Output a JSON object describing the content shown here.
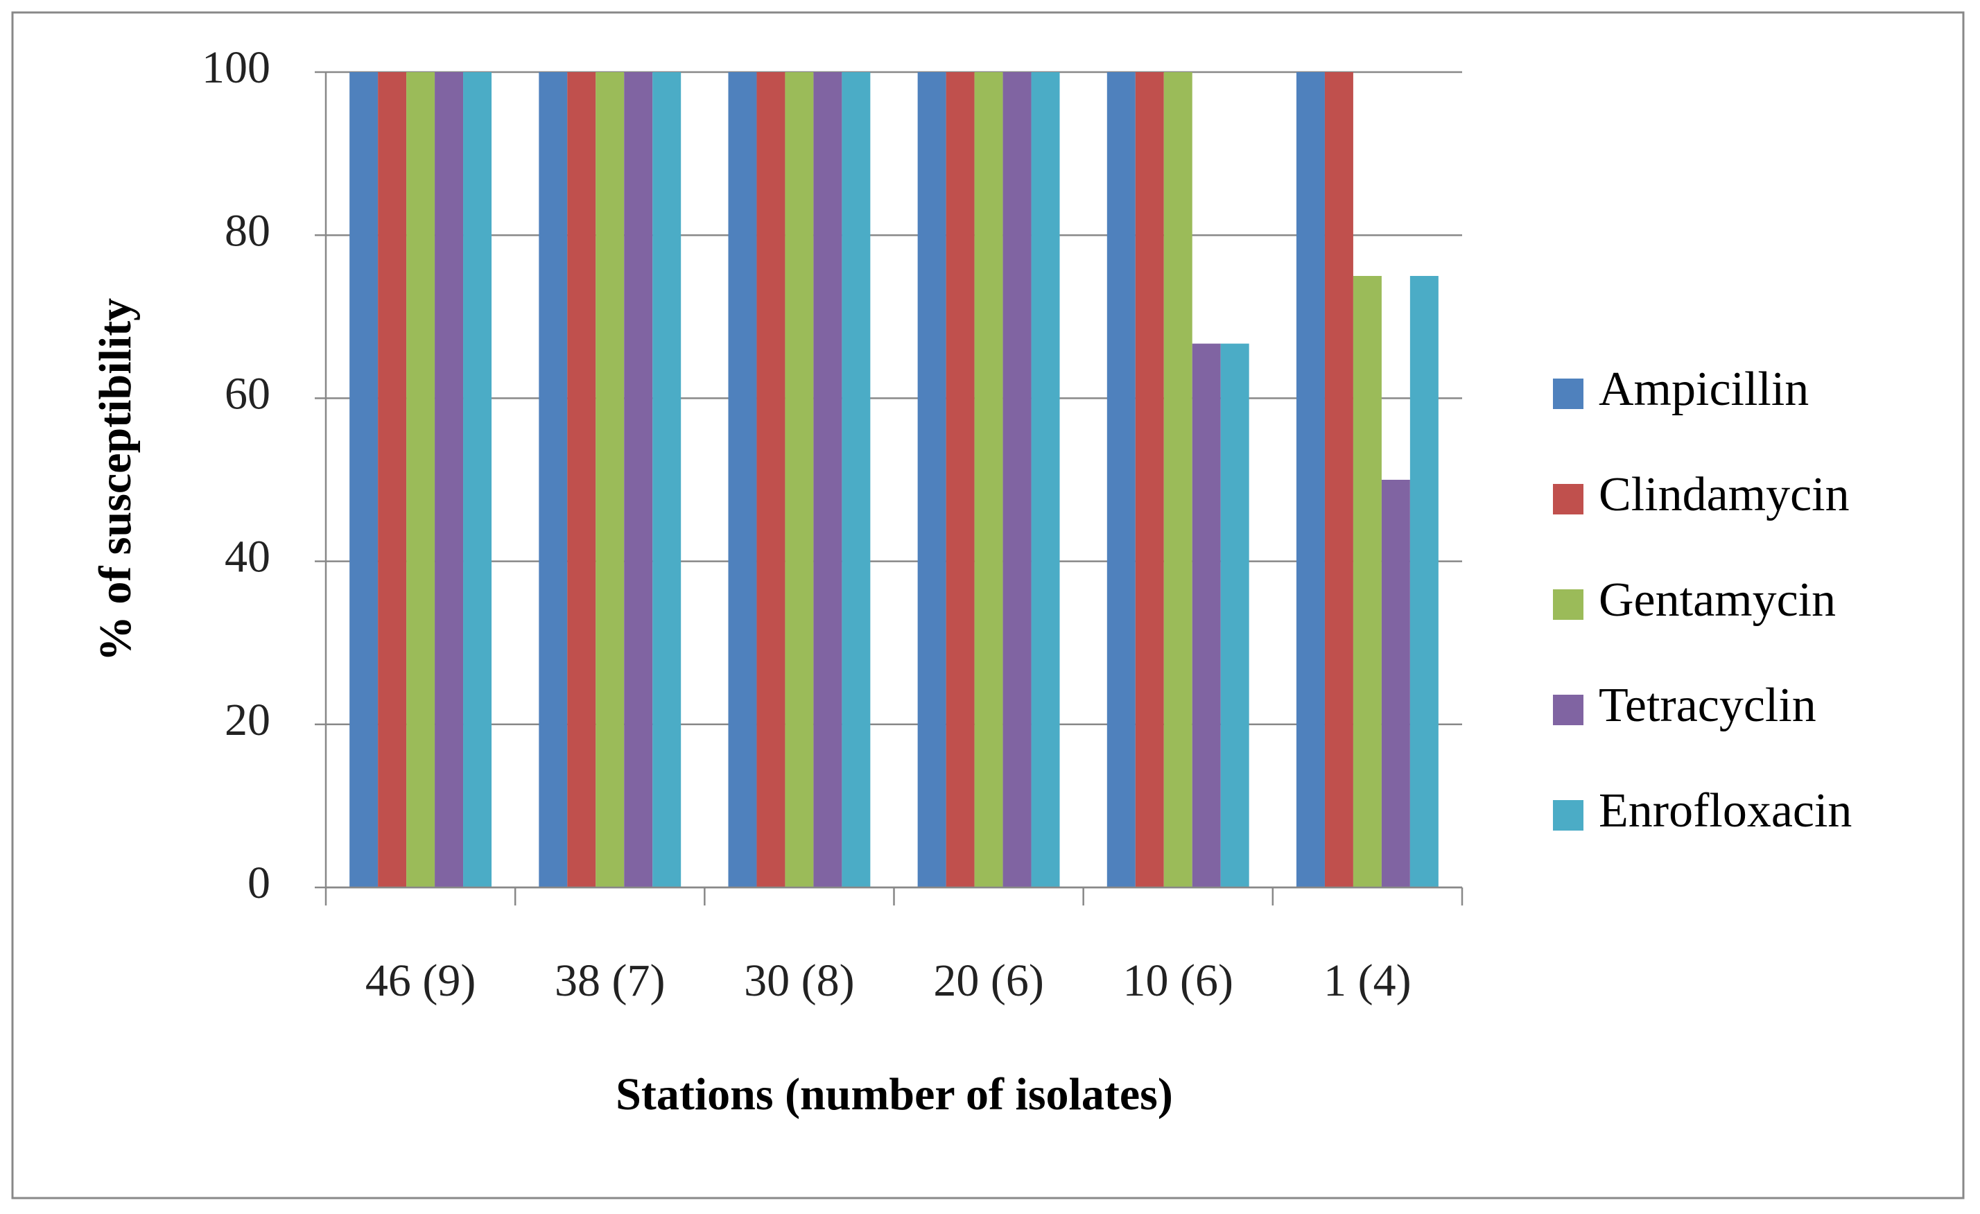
{
  "chart_data": {
    "type": "bar",
    "x_label": "Stations (number of isolates)",
    "y_label": "% of susceptibility",
    "categories": [
      "46 (9)",
      "38 (7)",
      "30 (8)",
      "20 (6)",
      "10 (6)",
      "1 (4)"
    ],
    "series": [
      {
        "name": "Ampicillin",
        "color": "#4f81bd",
        "values": [
          100,
          100,
          100,
          100,
          100,
          100
        ]
      },
      {
        "name": "Clindamycin",
        "color": "#c0504d",
        "values": [
          100,
          100,
          100,
          100,
          100,
          100
        ]
      },
      {
        "name": "Gentamycin",
        "color": "#9bbb59",
        "values": [
          100,
          100,
          100,
          100,
          100,
          75
        ]
      },
      {
        "name": "Tetracyclin",
        "color": "#8064a2",
        "values": [
          100,
          100,
          100,
          100,
          66.7,
          50
        ]
      },
      {
        "name": "Enrofloxacin",
        "color": "#4bacc6",
        "values": [
          100,
          100,
          100,
          100,
          66.7,
          75
        ]
      }
    ],
    "ylim": [
      0,
      100
    ],
    "yticks": [
      0,
      20,
      40,
      60,
      80,
      100
    ],
    "grid": true,
    "legend": "right"
  }
}
